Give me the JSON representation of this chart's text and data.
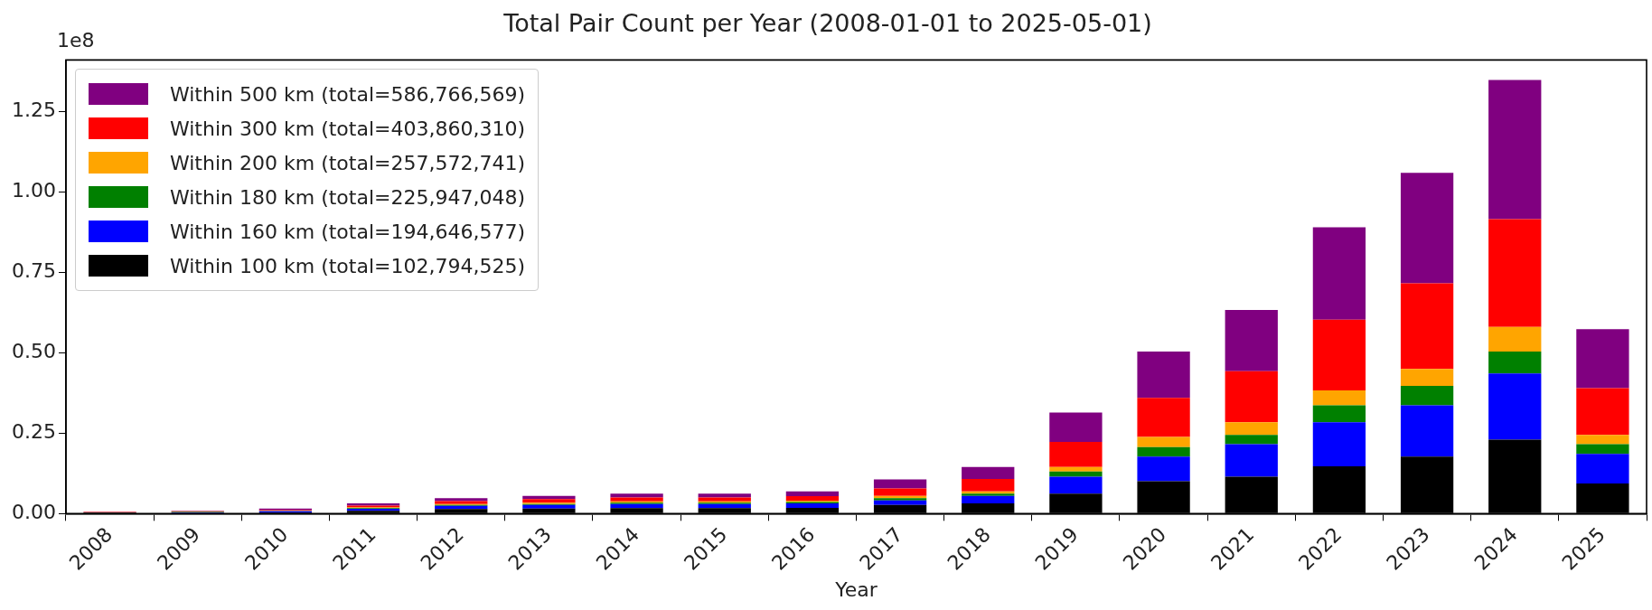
{
  "chart_data": {
    "type": "bar",
    "title": "Total Pair Count per Year (2008-01-01 to 2025-05-01)",
    "xlabel": "Year",
    "annotations": [
      "1e8"
    ],
    "categories": [
      "2008",
      "2009",
      "2010",
      "2011",
      "2012",
      "2013",
      "2014",
      "2015",
      "2016",
      "2017",
      "2018",
      "2019",
      "2020",
      "2021",
      "2022",
      "2023",
      "2024",
      "2025"
    ],
    "stacked": true,
    "legend": "top left",
    "grid": false,
    "ylim": [
      0,
      1.41
    ],
    "yticks": [
      {
        "value": 0,
        "label": "0.00"
      },
      {
        "value": 0.25,
        "label": "0.25"
      },
      {
        "value": 0.5,
        "label": "0.50"
      },
      {
        "value": 0.75,
        "label": "0.75"
      },
      {
        "value": 1,
        "label": "1.00"
      },
      {
        "value": 1.25,
        "label": "1.25"
      }
    ],
    "series": [
      {
        "name": "Within 100 km (total=102,794,525)",
        "color": "#000000",
        "values": [
          0.001,
          0.002,
          0.004,
          0.009,
          0.014,
          0.016,
          0.017,
          0.017,
          0.018,
          0.027,
          0.032,
          0.062,
          0.101,
          0.115,
          0.147,
          0.177,
          0.23,
          0.094
        ]
      },
      {
        "name": "Within 160 km (total=194,646,577)",
        "color": "#0000ff",
        "values": [
          0.001,
          0.002,
          0.003,
          0.006,
          0.01,
          0.011,
          0.013,
          0.013,
          0.014,
          0.014,
          0.023,
          0.053,
          0.076,
          0.101,
          0.137,
          0.16,
          0.206,
          0.092
        ]
      },
      {
        "name": "Within 180 km (total=225,947,048)",
        "color": "#008000",
        "values": [
          0.001,
          0.001,
          0.001,
          0.002,
          0.003,
          0.003,
          0.004,
          0.004,
          0.004,
          0.007,
          0.007,
          0.016,
          0.03,
          0.029,
          0.053,
          0.06,
          0.068,
          0.03
        ]
      },
      {
        "name": "Within 200 km (total=257,572,741)",
        "color": "#ffa500",
        "values": [
          0.001,
          0.001,
          0.001,
          0.002,
          0.003,
          0.004,
          0.004,
          0.004,
          0.004,
          0.007,
          0.007,
          0.014,
          0.031,
          0.039,
          0.046,
          0.053,
          0.076,
          0.029
        ]
      },
      {
        "name": "Within 300 km (total=403,860,310)",
        "color": "#ff0000",
        "values": [
          0.001,
          0.001,
          0.002,
          0.006,
          0.009,
          0.011,
          0.012,
          0.012,
          0.014,
          0.023,
          0.039,
          0.078,
          0.122,
          0.159,
          0.22,
          0.266,
          0.335,
          0.145
        ]
      },
      {
        "name": "Within 500 km (total=586,766,569)",
        "color": "#800080",
        "values": [
          0.001,
          0.002,
          0.005,
          0.007,
          0.009,
          0.01,
          0.012,
          0.012,
          0.015,
          0.028,
          0.037,
          0.091,
          0.144,
          0.19,
          0.287,
          0.343,
          0.433,
          0.183
        ]
      }
    ]
  }
}
